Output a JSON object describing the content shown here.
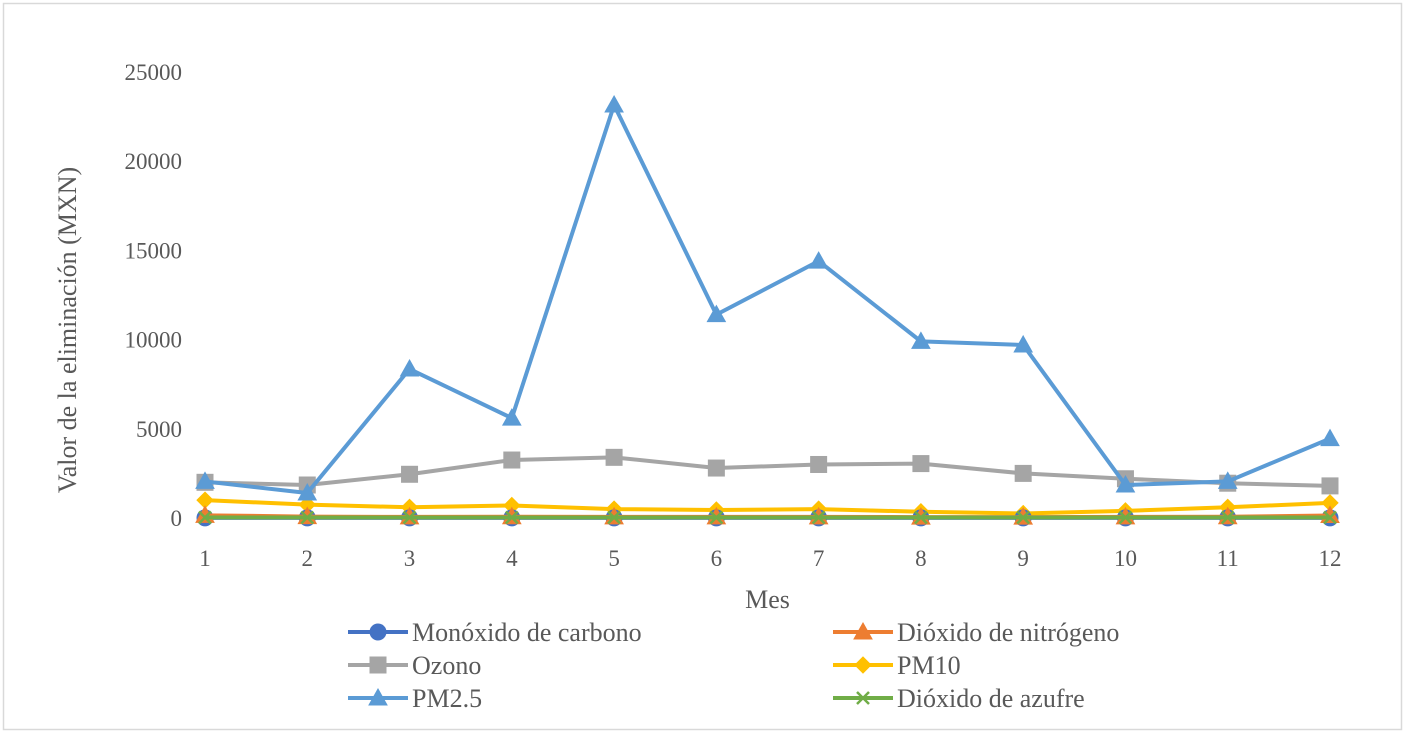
{
  "chart_data": {
    "type": "line",
    "title": "",
    "xlabel": "Mes",
    "ylabel": "Valor de la eliminación (MXN)",
    "x": [
      1,
      2,
      3,
      4,
      5,
      6,
      7,
      8,
      9,
      10,
      11,
      12
    ],
    "ylim": [
      0,
      25000
    ],
    "yticks": [
      0,
      5000,
      10000,
      15000,
      20000,
      25000
    ],
    "grid": false,
    "legend_position": "bottom",
    "series": [
      {
        "name": "Monóxido de carbono",
        "color": "#4472C4",
        "marker": "circle",
        "values": [
          10,
          10,
          10,
          10,
          10,
          10,
          10,
          10,
          10,
          10,
          10,
          10
        ]
      },
      {
        "name": "Dióxido de nitrógeno",
        "color": "#ED7D31",
        "marker": "triangle",
        "values": [
          150,
          80,
          60,
          70,
          60,
          60,
          60,
          50,
          50,
          60,
          70,
          140
        ]
      },
      {
        "name": "Ozono",
        "color": "#A5A5A5",
        "marker": "square",
        "values": [
          2000,
          1850,
          2450,
          3250,
          3400,
          2800,
          3000,
          3050,
          2500,
          2200,
          1950,
          1800
        ]
      },
      {
        "name": "PM10",
        "color": "#FFC000",
        "marker": "diamond",
        "values": [
          1000,
          750,
          600,
          700,
          500,
          450,
          500,
          350,
          250,
          400,
          600,
          850
        ]
      },
      {
        "name": "PM2.5",
        "color": "#5B9BD5",
        "marker": "triangle",
        "values": [
          2050,
          1400,
          8350,
          5600,
          23150,
          11400,
          14400,
          9900,
          9700,
          1850,
          2050,
          4450
        ]
      },
      {
        "name": "Dióxido de azufre",
        "color": "#70AD47",
        "marker": "x",
        "values": [
          30,
          30,
          30,
          30,
          30,
          30,
          30,
          30,
          30,
          30,
          30,
          30
        ]
      }
    ]
  }
}
